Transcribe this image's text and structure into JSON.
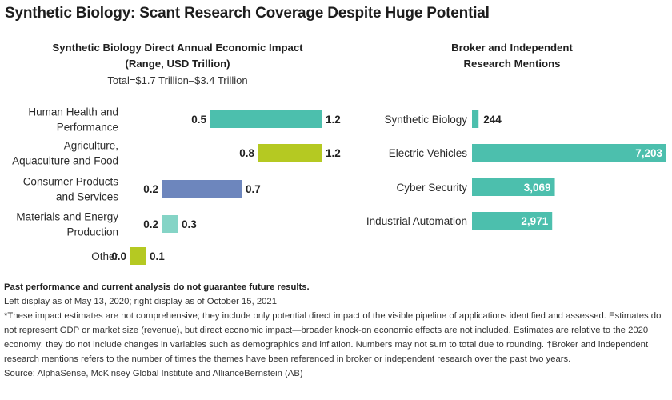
{
  "title": "Synthetic Biology: Scant Research Coverage Despite Huge Potential",
  "left_chart": {
    "title_line1": "Synthetic Biology Direct Annual Economic Impact",
    "title_line2": "(Range, USD Trillion)",
    "note": "Total=$1.7 Trillion–$3.4 Trillion"
  },
  "right_chart": {
    "title_line1": "Broker and Independent",
    "title_line2": "Research Mentions"
  },
  "footer": {
    "disclaimer": "Past performance and current analysis do not guarantee future results.",
    "dates": "Left display as of May 13, 2020; right display as of October 15, 2021",
    "notes": "*These impact estimates are not comprehensive; they include only potential direct impact of the visible pipeline of applications identified and assessed. Estimates do not represent GDP or market size (revenue), but direct economic impact—broader knock-on economic effects are not included. Estimates are relative to the 2020 economy; they do not include changes in variables such as demographics and inflation. Numbers may not sum to total due to rounding. †Broker and independent research mentions refers to the number of times the themes have been referenced in broker or independent research over the past two years.",
    "source": "Source: AlphaSense, McKinsey Global Institute and AllianceBernstein (AB)"
  },
  "chart_data": [
    {
      "type": "bar",
      "orientation": "horizontal",
      "range": true,
      "title": "Synthetic Biology Direct Annual Economic Impact (Range, USD Trillion)",
      "categories": [
        [
          "Human Health and",
          "Performance"
        ],
        [
          "Agriculture,",
          "Aquaculture and Food"
        ],
        [
          "Consumer Products",
          "and Services"
        ],
        [
          "Materials and Energy",
          "Production"
        ],
        [
          "Other"
        ]
      ],
      "low": [
        0.5,
        0.8,
        0.2,
        0.2,
        0.0
      ],
      "high": [
        1.2,
        1.2,
        0.7,
        0.3,
        0.1
      ],
      "low_labels": [
        "0.5",
        "0.8",
        "0.2",
        "0.2",
        "0.0"
      ],
      "high_labels": [
        "1.2",
        "1.2",
        "0.7",
        "0.3",
        "0.1"
      ],
      "colors": [
        "#4cbfad",
        "#b5c922",
        "#6d86bd",
        "#85d4c6",
        "#b5c922"
      ],
      "xlim": [
        0,
        1.2
      ]
    },
    {
      "type": "bar",
      "orientation": "horizontal",
      "title": "Broker and Independent Research Mentions",
      "categories": [
        "Synthetic Biology",
        "Electric Vehicles",
        "Cyber Security",
        "Industrial Automation"
      ],
      "values": [
        244,
        7203,
        3069,
        2971
      ],
      "labels": [
        "244",
        "7,203",
        "3,069",
        "2,971"
      ],
      "color": "#4cbfad",
      "xlim": [
        0,
        7203
      ]
    }
  ]
}
